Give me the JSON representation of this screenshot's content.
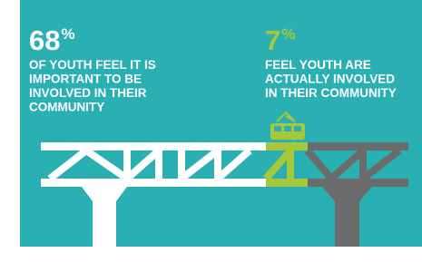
{
  "stats": [
    {
      "number": "68",
      "unit": "%",
      "lines": [
        "OF YOUTH FEEL IT IS",
        "IMPORTANT TO BE",
        "INVOLVED IN THEIR",
        "COMMUNITY"
      ]
    },
    {
      "number": "7",
      "unit": "%",
      "lines": [
        "FEEL YOUTH ARE",
        "ACTUALLY INVOLVED",
        "IN THEIR COMMUNITY"
      ]
    }
  ]
}
